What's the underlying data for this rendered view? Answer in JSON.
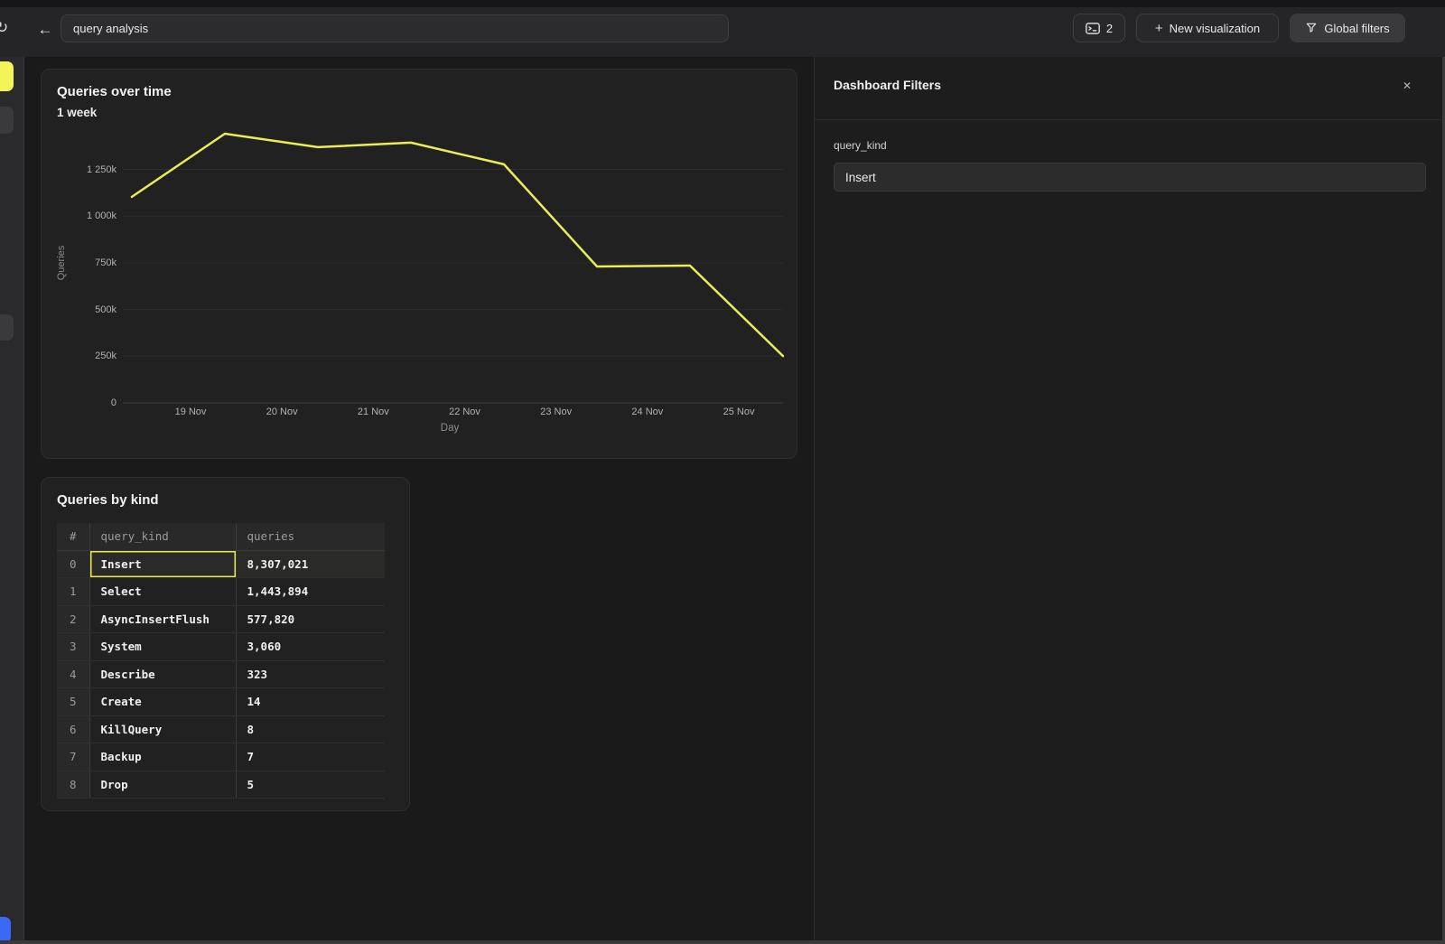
{
  "colors": {
    "accent_yellow": "#f2f45a",
    "selection_yellow": "#e7e84b",
    "chart_line": "#e9ee55",
    "sidebar_blue": "#3c68f6"
  },
  "topbar": {
    "refresh_icon": "↻",
    "back_icon": "←",
    "title_value": "query analysis",
    "console_button": {
      "count": "2"
    },
    "new_visualization_button": {
      "plus": "+",
      "label": "New visualization"
    },
    "global_filters_button": {
      "label": "Global filters"
    }
  },
  "chart_card": {
    "title": "Queries over time",
    "subtitle": "1 week"
  },
  "chart_data": {
    "type": "line",
    "title": "Queries over time",
    "subtitle": "1 week",
    "xlabel": "Day",
    "ylabel": "Queries",
    "x_tick_labels": [
      "19 Nov",
      "20 Nov",
      "21 Nov",
      "22 Nov",
      "23 Nov",
      "24 Nov",
      "25 Nov"
    ],
    "y_ticks": [
      {
        "value": 0,
        "label": "0"
      },
      {
        "value": 250000,
        "label": "250k"
      },
      {
        "value": 500000,
        "label": "500k"
      },
      {
        "value": 750000,
        "label": "750k"
      },
      {
        "value": 1000000,
        "label": "1 000k"
      },
      {
        "value": 1250000,
        "label": "1 250k"
      }
    ],
    "ylim": [
      0,
      1450000
    ],
    "grid": true,
    "legend_position": "none",
    "line_color": "#e9ee55",
    "series": [
      {
        "name": "Queries",
        "values": [
          1103000,
          1441000,
          1369000,
          1393000,
          1277000,
          730000,
          735000,
          251000
        ]
      }
    ],
    "x_layout_note": "8 daily points evenly spaced; the 7 labeled ticks (19-25 Nov) sit between/after points, final point at right edge"
  },
  "table_card": {
    "title": "Queries by kind",
    "columns": [
      "#",
      "query_kind",
      "queries"
    ],
    "rows": [
      {
        "index": "0",
        "kind": "Insert",
        "queries": "8,307,021"
      },
      {
        "index": "1",
        "kind": "Select",
        "queries": "1,443,894"
      },
      {
        "index": "2",
        "kind": "AsyncInsertFlush",
        "queries": "577,820"
      },
      {
        "index": "3",
        "kind": "System",
        "queries": "3,060"
      },
      {
        "index": "4",
        "kind": "Describe",
        "queries": "323"
      },
      {
        "index": "5",
        "kind": "Create",
        "queries": "14"
      },
      {
        "index": "6",
        "kind": "KillQuery",
        "queries": "8"
      },
      {
        "index": "7",
        "kind": "Backup",
        "queries": "7"
      },
      {
        "index": "8",
        "kind": "Drop",
        "queries": "5"
      }
    ],
    "selected_row": 0,
    "selected_cell_value": "Insert"
  },
  "filters_panel": {
    "title": "Dashboard Filters",
    "close_icon": "✕",
    "filter_label": "query_kind",
    "filter_value": "Insert"
  }
}
